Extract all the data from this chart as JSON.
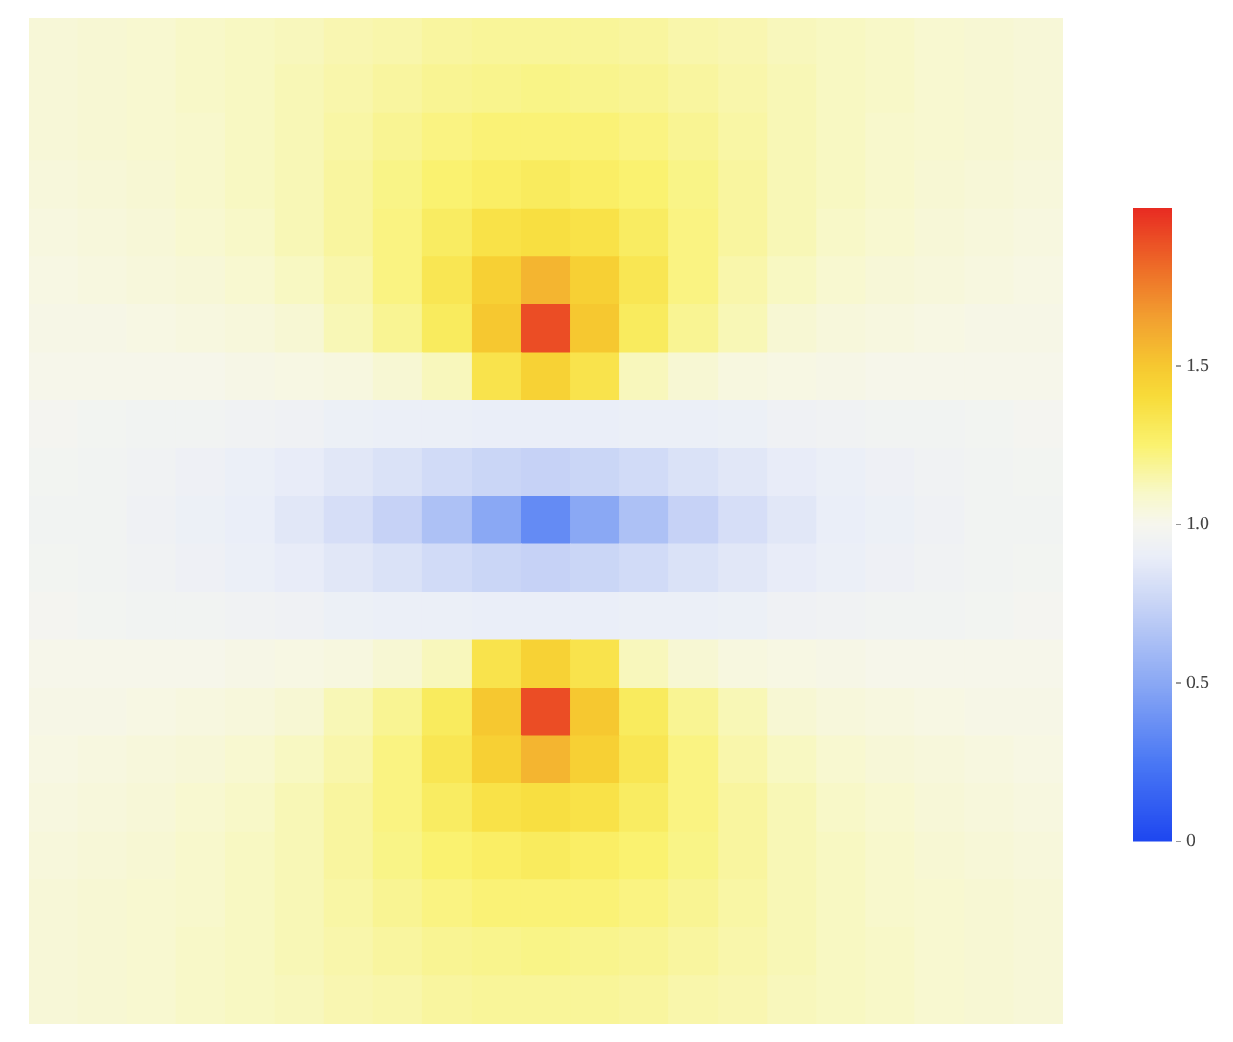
{
  "chart_data": {
    "type": "heatmap",
    "categories": [
      null,
      null,
      null,
      null,
      null,
      null,
      null,
      null,
      null,
      null,
      null,
      null,
      null,
      null,
      null,
      null,
      null,
      null,
      null,
      null,
      null
    ],
    "y_categories": [
      null,
      null,
      null,
      null,
      null,
      null,
      null,
      null,
      null,
      null,
      null,
      null,
      null,
      null,
      null,
      null,
      null,
      null,
      null,
      null,
      null
    ],
    "cells": [
      [
        1.06,
        1.07,
        1.08,
        1.1,
        1.11,
        1.12,
        1.14,
        1.15,
        1.17,
        1.18,
        1.18,
        1.18,
        1.17,
        1.15,
        1.14,
        1.12,
        1.11,
        1.1,
        1.08,
        1.07,
        1.06
      ],
      [
        1.06,
        1.07,
        1.08,
        1.1,
        1.11,
        1.13,
        1.15,
        1.17,
        1.19,
        1.2,
        1.21,
        1.2,
        1.19,
        1.17,
        1.15,
        1.13,
        1.11,
        1.1,
        1.08,
        1.07,
        1.06
      ],
      [
        1.06,
        1.07,
        1.08,
        1.09,
        1.11,
        1.13,
        1.16,
        1.19,
        1.22,
        1.24,
        1.24,
        1.24,
        1.22,
        1.19,
        1.16,
        1.13,
        1.11,
        1.09,
        1.08,
        1.07,
        1.06
      ],
      [
        1.05,
        1.06,
        1.07,
        1.09,
        1.11,
        1.13,
        1.17,
        1.21,
        1.25,
        1.28,
        1.3,
        1.28,
        1.25,
        1.21,
        1.17,
        1.13,
        1.11,
        1.09,
        1.07,
        1.06,
        1.05
      ],
      [
        1.04,
        1.05,
        1.06,
        1.08,
        1.1,
        1.13,
        1.17,
        1.22,
        1.29,
        1.36,
        1.38,
        1.36,
        1.29,
        1.22,
        1.17,
        1.13,
        1.1,
        1.08,
        1.06,
        1.05,
        1.04
      ],
      [
        1.03,
        1.04,
        1.05,
        1.06,
        1.08,
        1.11,
        1.15,
        1.22,
        1.33,
        1.46,
        1.57,
        1.46,
        1.33,
        1.22,
        1.15,
        1.11,
        1.08,
        1.06,
        1.05,
        1.04,
        1.03
      ],
      [
        1.02,
        1.02,
        1.03,
        1.04,
        1.05,
        1.07,
        1.13,
        1.19,
        1.3,
        1.5,
        1.9,
        1.5,
        1.3,
        1.19,
        1.13,
        1.07,
        1.05,
        1.04,
        1.03,
        1.02,
        1.02
      ],
      [
        1.01,
        1.01,
        1.01,
        1.01,
        1.02,
        1.03,
        1.04,
        1.07,
        1.12,
        1.35,
        1.45,
        1.35,
        1.12,
        1.07,
        1.04,
        1.03,
        1.02,
        1.01,
        1.01,
        1.01,
        1.01
      ],
      [
        0.98,
        0.97,
        0.96,
        0.96,
        0.95,
        0.94,
        0.92,
        0.91,
        0.91,
        0.9,
        0.9,
        0.9,
        0.91,
        0.91,
        0.92,
        0.94,
        0.95,
        0.96,
        0.96,
        0.97,
        0.98
      ],
      [
        0.97,
        0.96,
        0.95,
        0.93,
        0.91,
        0.89,
        0.86,
        0.83,
        0.79,
        0.76,
        0.74,
        0.76,
        0.79,
        0.83,
        0.86,
        0.89,
        0.91,
        0.93,
        0.95,
        0.96,
        0.97
      ],
      [
        0.96,
        0.96,
        0.94,
        0.92,
        0.9,
        0.86,
        0.81,
        0.74,
        0.64,
        0.5,
        0.35,
        0.5,
        0.64,
        0.74,
        0.81,
        0.86,
        0.9,
        0.92,
        0.94,
        0.96,
        0.96
      ],
      [
        0.97,
        0.96,
        0.95,
        0.93,
        0.91,
        0.89,
        0.86,
        0.83,
        0.79,
        0.76,
        0.74,
        0.76,
        0.79,
        0.83,
        0.86,
        0.89,
        0.91,
        0.93,
        0.95,
        0.96,
        0.97
      ],
      [
        0.98,
        0.97,
        0.96,
        0.96,
        0.95,
        0.94,
        0.92,
        0.91,
        0.91,
        0.9,
        0.9,
        0.9,
        0.91,
        0.91,
        0.92,
        0.94,
        0.95,
        0.96,
        0.96,
        0.97,
        0.98
      ],
      [
        1.01,
        1.01,
        1.01,
        1.01,
        1.02,
        1.03,
        1.04,
        1.07,
        1.12,
        1.35,
        1.45,
        1.35,
        1.12,
        1.07,
        1.04,
        1.03,
        1.02,
        1.01,
        1.01,
        1.01,
        1.01
      ],
      [
        1.02,
        1.02,
        1.03,
        1.04,
        1.05,
        1.07,
        1.13,
        1.19,
        1.3,
        1.5,
        1.9,
        1.5,
        1.3,
        1.19,
        1.13,
        1.07,
        1.05,
        1.04,
        1.03,
        1.02,
        1.02
      ],
      [
        1.03,
        1.04,
        1.05,
        1.06,
        1.08,
        1.11,
        1.15,
        1.22,
        1.33,
        1.46,
        1.57,
        1.46,
        1.33,
        1.22,
        1.15,
        1.11,
        1.08,
        1.06,
        1.05,
        1.04,
        1.03
      ],
      [
        1.04,
        1.05,
        1.06,
        1.08,
        1.1,
        1.13,
        1.17,
        1.22,
        1.29,
        1.36,
        1.38,
        1.36,
        1.29,
        1.22,
        1.17,
        1.13,
        1.1,
        1.08,
        1.06,
        1.05,
        1.04
      ],
      [
        1.05,
        1.06,
        1.07,
        1.09,
        1.11,
        1.13,
        1.17,
        1.21,
        1.25,
        1.28,
        1.3,
        1.28,
        1.25,
        1.21,
        1.17,
        1.13,
        1.11,
        1.09,
        1.07,
        1.06,
        1.05
      ],
      [
        1.06,
        1.07,
        1.08,
        1.09,
        1.11,
        1.13,
        1.16,
        1.19,
        1.22,
        1.24,
        1.24,
        1.24,
        1.22,
        1.19,
        1.16,
        1.13,
        1.11,
        1.09,
        1.08,
        1.07,
        1.06
      ],
      [
        1.06,
        1.07,
        1.08,
        1.1,
        1.11,
        1.13,
        1.15,
        1.17,
        1.19,
        1.2,
        1.21,
        1.2,
        1.19,
        1.17,
        1.15,
        1.13,
        1.11,
        1.1,
        1.08,
        1.07,
        1.06
      ],
      [
        1.06,
        1.07,
        1.08,
        1.1,
        1.11,
        1.12,
        1.14,
        1.15,
        1.17,
        1.18,
        1.18,
        1.18,
        1.17,
        1.15,
        1.14,
        1.12,
        1.11,
        1.1,
        1.08,
        1.07,
        1.06
      ]
    ],
    "clim": [
      0,
      2
    ],
    "cticks": [
      0,
      0.5,
      {
        "value": 1,
        "label": "1.0"
      },
      1.5
    ],
    "tick_labels": false
  }
}
